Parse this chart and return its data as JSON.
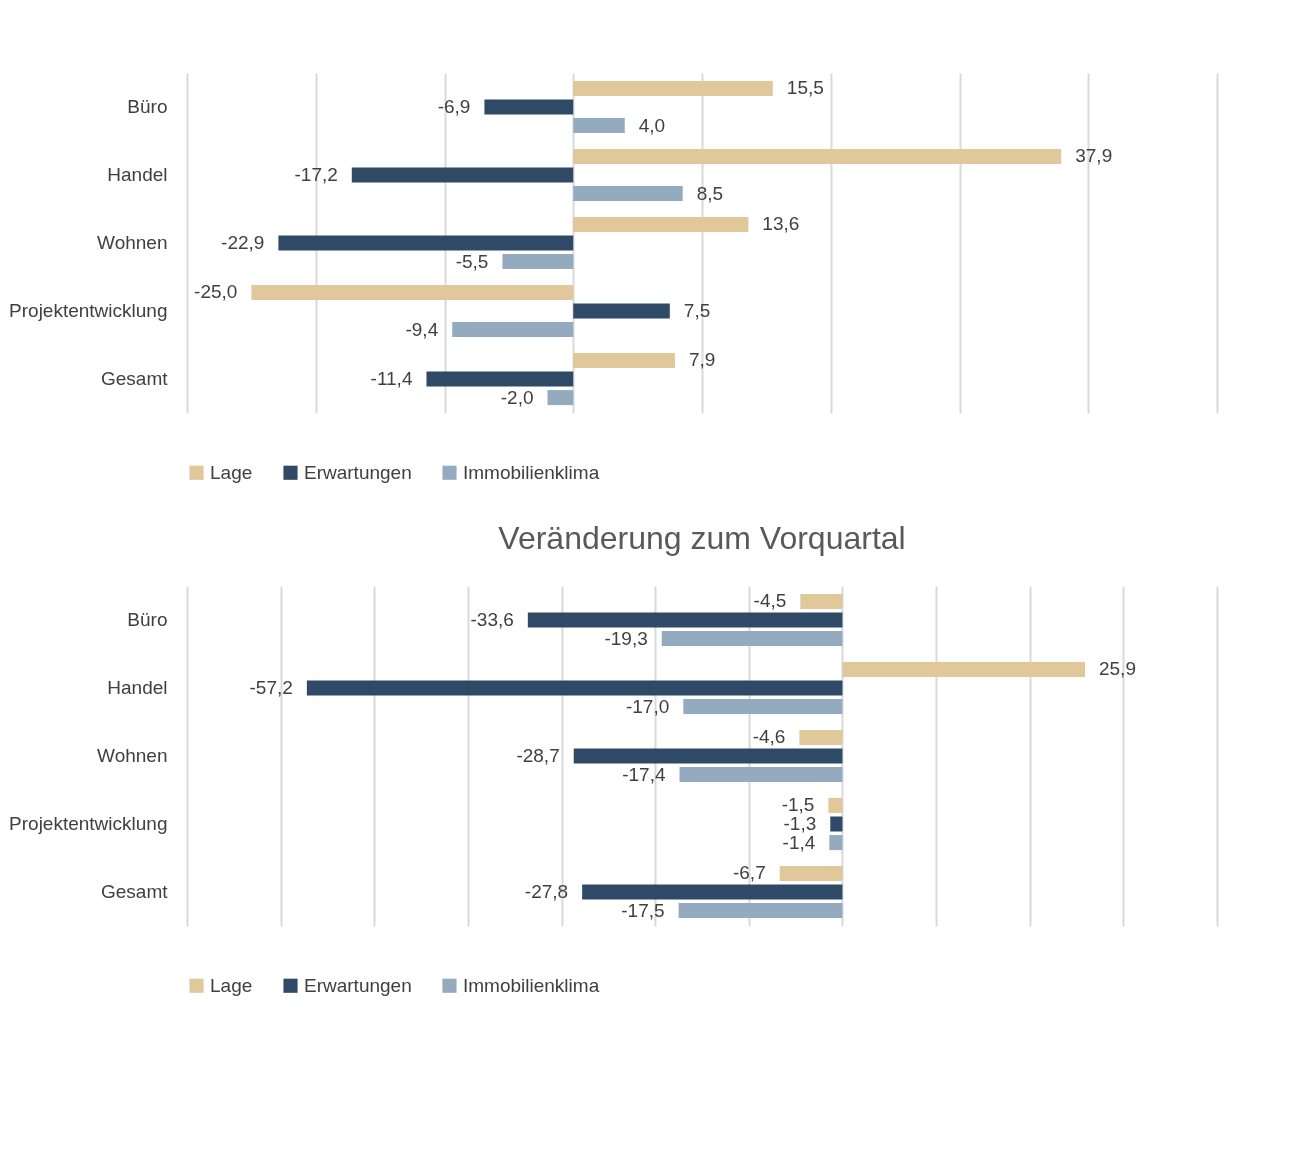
{
  "chart_data": [
    {
      "type": "bar",
      "orientation": "horizontal",
      "categories": [
        "Büro",
        "Handel",
        "Wohnen",
        "Projektentwicklung",
        "Gesamt"
      ],
      "series": [
        {
          "name": "Lage",
          "color": "#e0c89a",
          "values": [
            15.5,
            37.9,
            13.6,
            -25.0,
            7.9
          ],
          "value_labels": [
            "15,5",
            "37,9",
            "13,6",
            "-25,0",
            "7,9"
          ]
        },
        {
          "name": "Erwartungen",
          "color": "#2e4a66",
          "values": [
            -6.9,
            -17.2,
            -22.9,
            7.5,
            -11.4
          ],
          "value_labels": [
            "-6,9",
            "-17,2",
            "-22,9",
            "7,5",
            "-11,4"
          ]
        },
        {
          "name": "Immobilienklima",
          "color": "#94aabf",
          "values": [
            4.0,
            8.5,
            -5.5,
            -9.4,
            -2.0
          ],
          "value_labels": [
            "4,0",
            "8,5",
            "-5,5",
            "-9,4",
            "-2,0"
          ]
        }
      ],
      "grid": "x",
      "tick_labels": "y",
      "legend": "bottom"
    },
    {
      "type": "bar",
      "orientation": "horizontal",
      "title": "Veränderung zum Vorquartal",
      "categories": [
        "Büro",
        "Handel",
        "Wohnen",
        "Projektentwicklung",
        "Gesamt"
      ],
      "series": [
        {
          "name": "Lage",
          "color": "#e0c89a",
          "values": [
            -4.5,
            25.9,
            -4.6,
            -1.5,
            -6.7
          ],
          "value_labels": [
            "-4,5",
            "25,9",
            "-4,6",
            "-1,5",
            "-6,7"
          ]
        },
        {
          "name": "Erwartungen",
          "color": "#2e4a66",
          "values": [
            -33.6,
            -57.2,
            -28.7,
            -1.3,
            -27.8
          ],
          "value_labels": [
            "-33,6",
            "-57,2",
            "-28,7",
            "-1,3",
            "-27,8"
          ]
        },
        {
          "name": "Immobilienklima",
          "color": "#94aabf",
          "values": [
            -19.3,
            -17.0,
            -17.4,
            -1.4,
            -17.5
          ],
          "value_labels": [
            "-19,3",
            "-17,0",
            "-17,4",
            "-1,4",
            "-17,5"
          ]
        }
      ],
      "grid": "x",
      "tick_labels": "y",
      "legend": "bottom"
    }
  ]
}
